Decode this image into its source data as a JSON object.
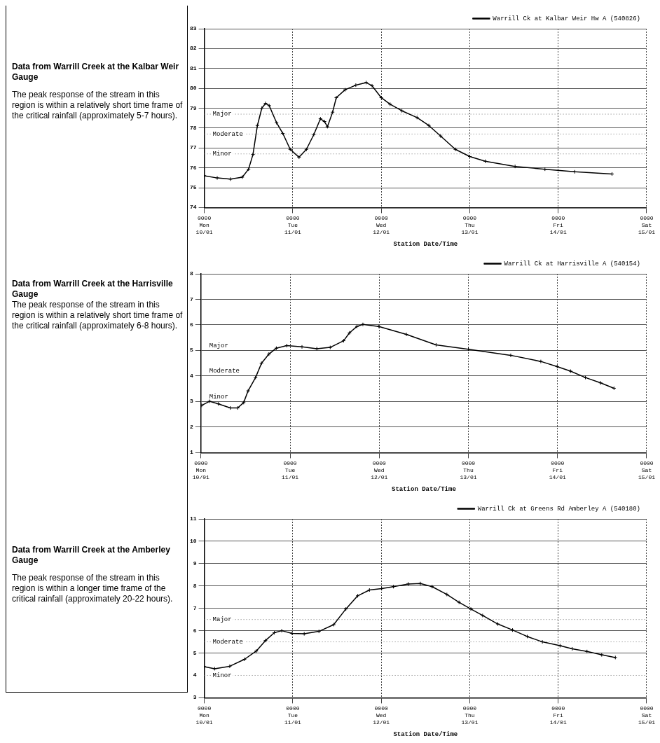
{
  "chart_data": [
    {
      "type": "line",
      "title": "Data from Warrill Creek at the Kalbar Weir Gauge",
      "subtitle": "The peak response of the stream in this region is within a relatively short time frame of the critical rainfall (approximately 5-7 hours).",
      "xlabel": "Station Date/Time",
      "x": [
        "--01-10T00:00",
        "--01-10T03:30",
        "--01-10T07:06",
        "--01-10T10:18",
        "--01-10T12:00",
        "--01-10T13:12",
        "--01-10T14:24",
        "--01-10T15:36",
        "--01-10T16:36",
        "--01-10T17:36",
        "--01-10T19:36",
        "--01-10T21:18",
        "--01-10T23:18",
        "--01-11T01:42",
        "--01-11T03:42",
        "--01-11T05:42",
        "--01-11T07:30",
        "--01-11T08:36",
        "--01-11T09:24",
        "--01-11T10:48",
        "--01-11T11:48",
        "--01-11T14:12",
        "--01-11T17:06",
        "--01-11T19:54",
        "--01-11T21:30",
        "--01-12T00:00",
        "--01-12T02:24",
        "--01-12T05:36",
        "--01-12T09:42",
        "--01-12T12:54",
        "--01-12T16:06",
        "--01-12T20:06",
        "--01-13T00:00",
        "--01-13T04:12",
        "--01-13T12:18",
        "--01-13T20:24",
        "--01-14T04:30",
        "--01-14T14:36"
      ],
      "series": [
        {
          "name": "Warrill Ck at Kalbar Weir Hw A (540826)",
          "color": "#000000",
          "values": [
            75.6,
            75.49,
            75.43,
            75.53,
            75.93,
            76.67,
            78.13,
            79.0,
            79.24,
            79.13,
            78.27,
            77.73,
            76.93,
            76.53,
            76.93,
            77.67,
            78.47,
            78.33,
            78.07,
            78.8,
            79.53,
            79.93,
            80.16,
            80.29,
            80.13,
            79.53,
            79.2,
            78.87,
            78.53,
            78.13,
            77.6,
            76.93,
            76.57,
            76.33,
            76.07,
            75.93,
            75.8,
            75.69
          ]
        }
      ],
      "xlim": [
        "--01-10T00:00",
        "--01-15T00:00"
      ],
      "xticks": [
        {
          "value": "--01-10T00:00",
          "label": "0000\nMon\n10/01"
        },
        {
          "value": "--01-11T00:00",
          "label": "0000\nTue\n11/01"
        },
        {
          "value": "--01-12T00:00",
          "label": "0000\nWed\n12/01"
        },
        {
          "value": "--01-13T00:00",
          "label": "0000\nThu\n13/01"
        },
        {
          "value": "--01-14T00:00",
          "label": "0000\nFri\n14/01"
        },
        {
          "value": "--01-15T00:00",
          "label": "0000\nSat\n15/01"
        }
      ],
      "ylim": [
        74,
        83
      ],
      "yticks": [
        74,
        75,
        76,
        77,
        78,
        79,
        80,
        81,
        82,
        83
      ],
      "ref_lines": [
        {
          "axis": "y",
          "value": 78.7,
          "label": "Major"
        },
        {
          "axis": "y",
          "value": 77.7,
          "label": "Moderate"
        },
        {
          "axis": "y",
          "value": 76.7,
          "label": "Minor"
        }
      ],
      "grid": true,
      "legend": "top right",
      "marker": "cross",
      "line_style": "solid"
    },
    {
      "type": "line",
      "title": "Data from Warrill Creek at the Harrisville Gauge",
      "subtitle": "The peak response of the stream in this region is within a relatively short time frame of the critical rainfall (approximately 6-8 hours).",
      "xlabel": "Station Date/Time",
      "x": [
        "--01-10T00:12",
        "--01-10T02:18",
        "--01-10T04:42",
        "--01-10T07:54",
        "--01-10T09:54",
        "--01-10T11:30",
        "--01-10T12:42",
        "--01-10T14:42",
        "--01-10T16:18",
        "--01-10T18:18",
        "--01-10T20:18",
        "--01-10T23:06",
        "--01-11T03:12",
        "--01-11T07:12",
        "--01-11T10:48",
        "--01-11T14:24",
        "--01-11T16:00",
        "--01-11T18:00",
        "--01-11T19:36",
        "--01-11T23:54",
        "--01-12T07:18",
        "--01-12T15:18",
        "--01-13T00:00",
        "--01-13T11:24",
        "--01-13T19:30",
        "--01-13T23:54",
        "--01-14T03:30",
        "--01-14T07:30",
        "--01-14T11:36",
        "--01-14T15:12"
      ],
      "series": [
        {
          "name": "Warrill Ck at Harrisville A (540154)",
          "color": "#000000",
          "values": [
            2.85,
            3.01,
            2.91,
            2.75,
            2.75,
            2.96,
            3.42,
            3.94,
            4.5,
            4.86,
            5.09,
            5.19,
            5.14,
            5.07,
            5.12,
            5.38,
            5.69,
            5.94,
            6.02,
            5.94,
            5.63,
            5.22,
            5.05,
            4.81,
            4.57,
            4.37,
            4.19,
            3.94,
            3.73,
            3.52
          ]
        }
      ],
      "xlim": [
        "--01-10T00:00",
        "--01-15T00:00"
      ],
      "xticks": [
        {
          "value": "--01-10T00:00",
          "label": "0000\nMon\n10/01"
        },
        {
          "value": "--01-11T00:00",
          "label": "0000\nTue\n11/01"
        },
        {
          "value": "--01-12T00:00",
          "label": "0000\nWed\n12/01"
        },
        {
          "value": "--01-13T00:00",
          "label": "0000\nThu\n13/01"
        },
        {
          "value": "--01-14T00:00",
          "label": "0000\nFri\n14/01"
        },
        {
          "value": "--01-15T00:00",
          "label": "0000\nSat\n15/01"
        }
      ],
      "ylim": [
        1,
        8
      ],
      "yticks": [
        1,
        2,
        3,
        4,
        5,
        6,
        7,
        8
      ],
      "annotations": [
        "Major",
        "Moderate",
        "Minor"
      ],
      "grid": true,
      "legend": "top right",
      "marker": "cross",
      "line_style": "solid"
    },
    {
      "type": "line",
      "title": "Data from Warrill Creek at the Amberley Gauge",
      "subtitle": "The peak response of the stream in this region is within a longer time frame of the critical rainfall (approximately 20-22 hours).",
      "xlabel": "Station Date/Time",
      "x": [
        "--01-10T00:00",
        "--01-10T02:48",
        "--01-10T06:54",
        "--01-10T10:54",
        "--01-10T14:06",
        "--01-10T16:36",
        "--01-10T19:00",
        "--01-10T21:00",
        "--01-10T23:48",
        "--01-11T03:06",
        "--01-11T07:06",
        "--01-11T11:06",
        "--01-11T14:24",
        "--01-11T17:36",
        "--01-11T20:48",
        "--01-12T00:06",
        "--01-12T03:18",
        "--01-12T07:18",
        "--01-12T10:36",
        "--01-12T13:48",
        "--01-12T17:48",
        "--01-12T21:06",
        "--01-13T00:18",
        "--01-13T03:30",
        "--01-13T07:36",
        "--01-13T11:36",
        "--01-13T15:36",
        "--01-13T19:42",
        "--01-14T00:30",
        "--01-14T03:48",
        "--01-14T07:48",
        "--01-14T11:48",
        "--01-14T15:30"
      ],
      "series": [
        {
          "name": "Warrill Ck at Greens Rd Amberley A (540180)",
          "color": "#000000",
          "values": [
            4.39,
            4.3,
            4.41,
            4.72,
            5.09,
            5.56,
            5.91,
            6.0,
            5.88,
            5.86,
            5.97,
            6.27,
            6.97,
            7.56,
            7.82,
            7.88,
            7.97,
            8.09,
            8.11,
            7.97,
            7.62,
            7.27,
            6.97,
            6.68,
            6.3,
            6.03,
            5.74,
            5.5,
            5.33,
            5.19,
            5.07,
            4.92,
            4.8
          ]
        }
      ],
      "xlim": [
        "--01-10T00:00",
        "--01-15T00:00"
      ],
      "xticks": [
        {
          "value": "--01-10T00:00",
          "label": "0000\nMon\n10/01"
        },
        {
          "value": "--01-11T00:00",
          "label": "0000\nTue\n11/01"
        },
        {
          "value": "--01-12T00:00",
          "label": "0000\nWed\n12/01"
        },
        {
          "value": "--01-13T00:00",
          "label": "0000\nThu\n13/01"
        },
        {
          "value": "--01-14T00:00",
          "label": "0000\nFri\n14/01"
        },
        {
          "value": "--01-15T00:00",
          "label": "0000\nSat\n15/01"
        }
      ],
      "ylim": [
        3,
        11
      ],
      "yticks": [
        3,
        4,
        5,
        6,
        7,
        8,
        9,
        10,
        11
      ],
      "ref_lines": [
        {
          "axis": "y",
          "value": 6.5,
          "label": "Major"
        },
        {
          "axis": "y",
          "value": 5.5,
          "label": "Moderate"
        },
        {
          "axis": "y",
          "value": 4,
          "label": "Minor"
        }
      ],
      "grid": true,
      "legend": "top right",
      "marker": "cross",
      "line_style": "solid"
    }
  ]
}
